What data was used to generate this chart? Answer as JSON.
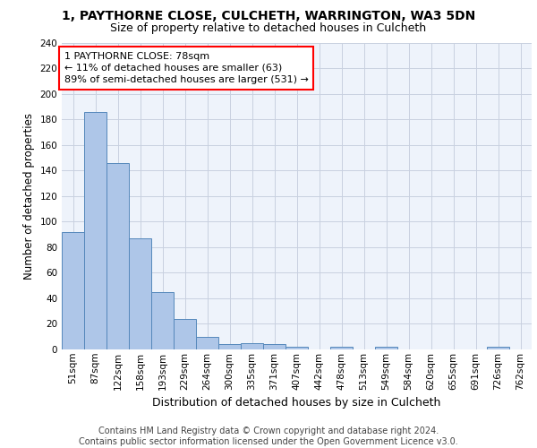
{
  "title_line1": "1, PAYTHORNE CLOSE, CULCHETH, WARRINGTON, WA3 5DN",
  "title_line2": "Size of property relative to detached houses in Culcheth",
  "xlabel": "Distribution of detached houses by size in Culcheth",
  "ylabel": "Number of detached properties",
  "bin_labels": [
    "51sqm",
    "87sqm",
    "122sqm",
    "158sqm",
    "193sqm",
    "229sqm",
    "264sqm",
    "300sqm",
    "335sqm",
    "371sqm",
    "407sqm",
    "442sqm",
    "478sqm",
    "513sqm",
    "549sqm",
    "584sqm",
    "620sqm",
    "655sqm",
    "691sqm",
    "726sqm",
    "762sqm"
  ],
  "bar_values": [
    92,
    186,
    146,
    87,
    45,
    24,
    10,
    4,
    5,
    4,
    2,
    0,
    2,
    0,
    2,
    0,
    0,
    0,
    0,
    2,
    0
  ],
  "bar_color": "#aec6e8",
  "bar_edge_color": "#5588bb",
  "annotation_text": "1 PAYTHORNE CLOSE: 78sqm\n← 11% of detached houses are smaller (63)\n89% of semi-detached houses are larger (531) →",
  "annotation_box_color": "white",
  "annotation_box_edge_color": "red",
  "ylim": [
    0,
    240
  ],
  "yticks": [
    0,
    20,
    40,
    60,
    80,
    100,
    120,
    140,
    160,
    180,
    200,
    220,
    240
  ],
  "footnote": "Contains HM Land Registry data © Crown copyright and database right 2024.\nContains public sector information licensed under the Open Government Licence v3.0.",
  "bg_color": "#eef3fb",
  "grid_color": "#c8d0e0",
  "title_fontsize": 10,
  "subtitle_fontsize": 9,
  "axis_label_fontsize": 8.5,
  "tick_fontsize": 7.5,
  "annotation_fontsize": 8,
  "footnote_fontsize": 7
}
